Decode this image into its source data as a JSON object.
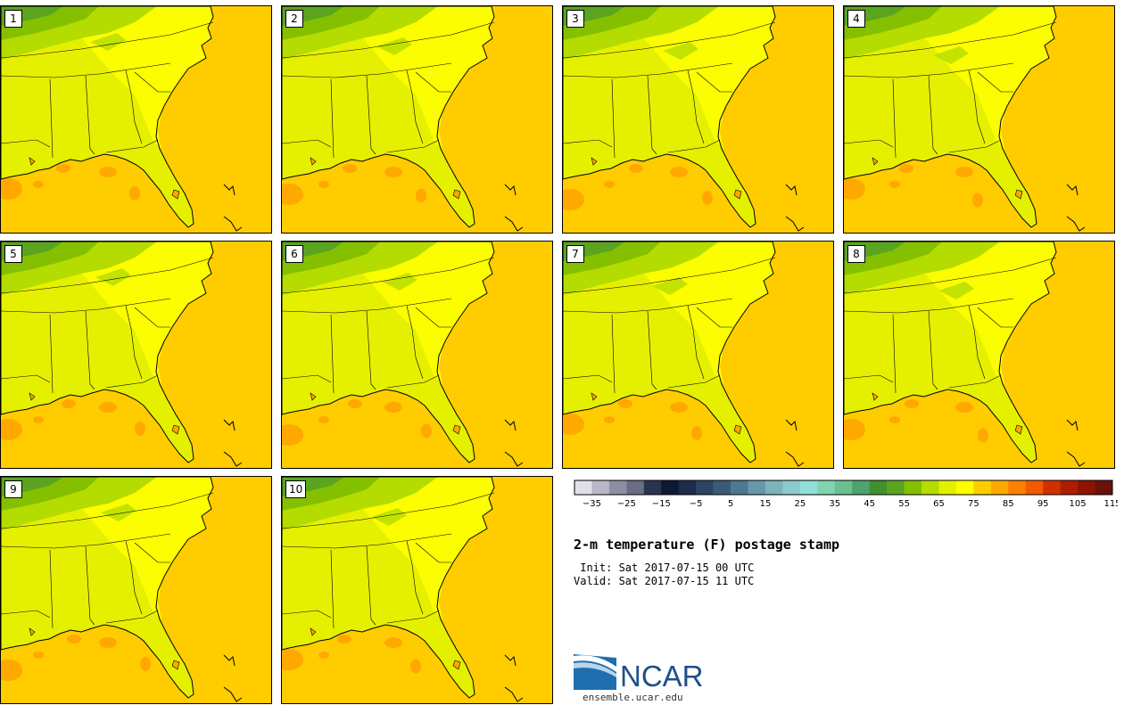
{
  "panels": [
    {
      "label": "1"
    },
    {
      "label": "2"
    },
    {
      "label": "3"
    },
    {
      "label": "4"
    },
    {
      "label": "5"
    },
    {
      "label": "6"
    },
    {
      "label": "7"
    },
    {
      "label": "8"
    },
    {
      "label": "9"
    },
    {
      "label": "10"
    }
  ],
  "title": "2-m temperature (F) postage stamp",
  "init_text": " Init: Sat 2017-07-15 00 UTC",
  "valid_text": "Valid: Sat 2017-07-15 11 UTC",
  "logo": {
    "name": "NCAR",
    "url": "ensemble.ucar.edu"
  },
  "colorbar": {
    "unit": "F",
    "tick_labels": [
      "−35",
      "−25",
      "−15",
      "−5",
      "5",
      "15",
      "25",
      "35",
      "45",
      "55",
      "65",
      "75",
      "85",
      "95",
      "105",
      "115"
    ],
    "colors": [
      "#e0e0e8",
      "#b8b8c8",
      "#8e8ea2",
      "#6a6e84",
      "#2a3450",
      "#0e1a34",
      "#1c2c4a",
      "#2c4462",
      "#3a5a78",
      "#4e7890",
      "#6898a8",
      "#7cb4bc",
      "#8ccacc",
      "#90e0d6",
      "#80d4b2",
      "#6cc090",
      "#4ca46c",
      "#409030",
      "#5aa420",
      "#84c000",
      "#b4dc00",
      "#e4f000",
      "#ffff00",
      "#ffcc00",
      "#ffa800",
      "#ff8000",
      "#f05a00",
      "#d03000",
      "#b01c00",
      "#8c1400",
      "#6a1208"
    ]
  },
  "map_colors": {
    "ocean": "#ffcc00",
    "land": "#e4f000",
    "warm_land": "#ffff00",
    "cool_1": "#b4dc00",
    "cool_2": "#84c000",
    "cool_3": "#5aa420",
    "hot": "#ffa800"
  }
}
